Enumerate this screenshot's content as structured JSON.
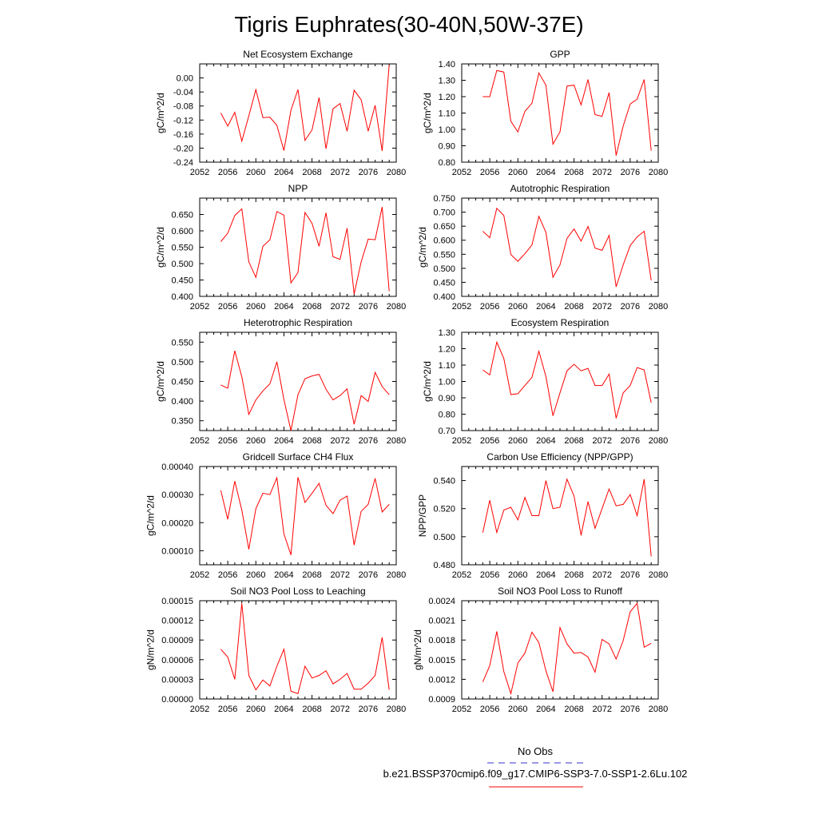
{
  "title": "Tigris Euphrates(30-40N,50W-37E)",
  "legend": {
    "obs_label": "No Obs",
    "obs_color": "#3333cc",
    "model_label": "b.e21.BSSP370cmip6.f09_g17.CMIP6-SSP3-7.0-SSP1-2.6Lu.102",
    "model_color": "#ff0000"
  },
  "chart_data": [
    {
      "type": "line",
      "title": "Net Ecosystem Exchange",
      "ylabel": "gC/m^2/d",
      "xlim": [
        2052,
        2080
      ],
      "ylim": [
        -0.24,
        0.04
      ],
      "xticks": [
        "2052",
        "2056",
        "2060",
        "2064",
        "2068",
        "2072",
        "2076",
        "2080"
      ],
      "yticks": [
        "0.00",
        "-0.04",
        "-0.08",
        "-0.12",
        "-0.16",
        "-0.20",
        "-0.24"
      ],
      "x": [
        2055,
        2056,
        2057,
        2058,
        2059,
        2060,
        2061,
        2062,
        2063,
        2064,
        2065,
        2066,
        2067,
        2068,
        2069,
        2070,
        2071,
        2072,
        2073,
        2074,
        2075,
        2076,
        2077,
        2078,
        2079
      ],
      "values": [
        -0.1,
        -0.137,
        -0.098,
        -0.18,
        -0.108,
        -0.033,
        -0.113,
        -0.112,
        -0.135,
        -0.207,
        -0.092,
        -0.033,
        -0.178,
        -0.148,
        -0.056,
        -0.202,
        -0.088,
        -0.073,
        -0.152,
        -0.035,
        -0.062,
        -0.152,
        -0.078,
        -0.208,
        0.037
      ]
    },
    {
      "type": "line",
      "title": "GPP",
      "ylabel": "gC/m^2/d",
      "xlim": [
        2052,
        2080
      ],
      "ylim": [
        0.8,
        1.4
      ],
      "xticks": [
        "2052",
        "2056",
        "2060",
        "2064",
        "2068",
        "2072",
        "2076",
        "2080"
      ],
      "yticks": [
        "1.40",
        "1.30",
        "1.20",
        "1.10",
        "1.00",
        "0.90",
        "0.80"
      ],
      "x": [
        2055,
        2056,
        2057,
        2058,
        2059,
        2060,
        2061,
        2062,
        2063,
        2064,
        2065,
        2066,
        2067,
        2068,
        2069,
        2070,
        2071,
        2072,
        2073,
        2074,
        2075,
        2076,
        2077,
        2078,
        2079
      ],
      "values": [
        1.2,
        1.2,
        1.36,
        1.35,
        1.05,
        0.985,
        1.11,
        1.16,
        1.345,
        1.27,
        0.91,
        0.985,
        1.265,
        1.27,
        1.15,
        1.305,
        1.09,
        1.08,
        1.225,
        0.84,
        1.02,
        1.155,
        1.185,
        1.305,
        0.87
      ]
    },
    {
      "type": "line",
      "title": "NPP",
      "ylabel": "gC/m^2/d",
      "xlim": [
        2052,
        2080
      ],
      "ylim": [
        0.4,
        0.7
      ],
      "xticks": [
        "2052",
        "2056",
        "2060",
        "2064",
        "2068",
        "2072",
        "2076",
        "2080"
      ],
      "yticks": [
        "0.650",
        "0.600",
        "0.550",
        "0.500",
        "0.450",
        "0.400"
      ],
      "x": [
        2055,
        2056,
        2057,
        2058,
        2059,
        2060,
        2061,
        2062,
        2063,
        2064,
        2065,
        2066,
        2067,
        2068,
        2069,
        2070,
        2071,
        2072,
        2073,
        2074,
        2075,
        2076,
        2077,
        2078,
        2079
      ],
      "values": [
        0.567,
        0.593,
        0.647,
        0.667,
        0.505,
        0.458,
        0.553,
        0.573,
        0.659,
        0.648,
        0.441,
        0.473,
        0.656,
        0.623,
        0.553,
        0.655,
        0.521,
        0.513,
        0.608,
        0.407,
        0.505,
        0.575,
        0.573,
        0.673,
        0.416
      ]
    },
    {
      "type": "line",
      "title": "Autotrophic Respiration",
      "ylabel": "gC/m^2/d",
      "xlim": [
        2052,
        2080
      ],
      "ylim": [
        0.4,
        0.75
      ],
      "xticks": [
        "2052",
        "2056",
        "2060",
        "2064",
        "2068",
        "2072",
        "2076",
        "2080"
      ],
      "yticks": [
        "0.750",
        "0.700",
        "0.650",
        "0.600",
        "0.550",
        "0.500",
        "0.450",
        "0.400"
      ],
      "x": [
        2055,
        2056,
        2057,
        2058,
        2059,
        2060,
        2061,
        2062,
        2063,
        2064,
        2065,
        2066,
        2067,
        2068,
        2069,
        2070,
        2071,
        2072,
        2073,
        2074,
        2075,
        2076,
        2077,
        2078,
        2079
      ],
      "values": [
        0.632,
        0.609,
        0.714,
        0.688,
        0.549,
        0.525,
        0.552,
        0.583,
        0.685,
        0.628,
        0.468,
        0.512,
        0.607,
        0.64,
        0.597,
        0.649,
        0.572,
        0.564,
        0.617,
        0.434,
        0.512,
        0.581,
        0.612,
        0.632,
        0.457
      ]
    },
    {
      "type": "line",
      "title": "Heterotrophic Respiration",
      "ylabel": "gC/m^2/d",
      "xlim": [
        2052,
        2080
      ],
      "ylim": [
        0.325,
        0.575
      ],
      "xticks": [
        "2052",
        "2056",
        "2060",
        "2064",
        "2068",
        "2072",
        "2076",
        "2080"
      ],
      "yticks": [
        "0.550",
        "0.500",
        "0.450",
        "0.400",
        "0.350"
      ],
      "x": [
        2055,
        2056,
        2057,
        2058,
        2059,
        2060,
        2061,
        2062,
        2063,
        2064,
        2065,
        2066,
        2067,
        2068,
        2069,
        2070,
        2071,
        2072,
        2073,
        2074,
        2075,
        2076,
        2077,
        2078,
        2079
      ],
      "values": [
        0.441,
        0.433,
        0.528,
        0.462,
        0.366,
        0.403,
        0.426,
        0.444,
        0.5,
        0.404,
        0.325,
        0.416,
        0.457,
        0.464,
        0.468,
        0.43,
        0.403,
        0.414,
        0.431,
        0.341,
        0.414,
        0.399,
        0.473,
        0.437,
        0.416
      ]
    },
    {
      "type": "line",
      "title": "Ecosystem Respiration",
      "ylabel": "gC/m^2/d",
      "xlim": [
        2052,
        2080
      ],
      "ylim": [
        0.7,
        1.3
      ],
      "xticks": [
        "2052",
        "2056",
        "2060",
        "2064",
        "2068",
        "2072",
        "2076",
        "2080"
      ],
      "yticks": [
        "1.30",
        "1.20",
        "1.10",
        "1.00",
        "0.90",
        "0.80",
        "0.70"
      ],
      "x": [
        2055,
        2056,
        2057,
        2058,
        2059,
        2060,
        2061,
        2062,
        2063,
        2064,
        2065,
        2066,
        2067,
        2068,
        2069,
        2070,
        2071,
        2072,
        2073,
        2074,
        2075,
        2076,
        2077,
        2078,
        2079
      ],
      "values": [
        1.07,
        1.04,
        1.24,
        1.14,
        0.92,
        0.925,
        0.975,
        1.025,
        1.185,
        1.03,
        0.79,
        0.93,
        1.065,
        1.105,
        1.065,
        1.08,
        0.975,
        0.975,
        1.045,
        0.775,
        0.93,
        0.975,
        1.085,
        1.07,
        0.87
      ]
    },
    {
      "type": "line",
      "title": "Gridcell Surface CH4 Flux",
      "ylabel": "gC/m^2/d",
      "xlim": [
        2052,
        2080
      ],
      "ylim": [
        5e-05,
        0.0004
      ],
      "xticks": [
        "2052",
        "2056",
        "2060",
        "2064",
        "2068",
        "2072",
        "2076",
        "2080"
      ],
      "yticks": [
        "0.00040",
        "0.00030",
        "0.00020",
        "0.00010"
      ],
      "x": [
        2055,
        2056,
        2057,
        2058,
        2059,
        2060,
        2061,
        2062,
        2063,
        2064,
        2065,
        2066,
        2067,
        2068,
        2069,
        2070,
        2071,
        2072,
        2073,
        2074,
        2075,
        2076,
        2077,
        2078,
        2079
      ],
      "values": [
        0.000315,
        0.000212,
        0.000348,
        0.000245,
        0.000105,
        0.00025,
        0.000305,
        0.0003,
        0.00036,
        0.00016,
        8.5e-05,
        0.000362,
        0.000272,
        0.000305,
        0.00034,
        0.000262,
        0.000232,
        0.00028,
        0.000295,
        0.00012,
        0.00024,
        0.000265,
        0.000358,
        0.000238,
        0.000265
      ]
    },
    {
      "type": "line",
      "title": "Carbon Use Efficiency (NPP/GPP)",
      "ylabel": "NPP/GPP",
      "xlim": [
        2052,
        2080
      ],
      "ylim": [
        0.48,
        0.55
      ],
      "xticks": [
        "2052",
        "2056",
        "2060",
        "2064",
        "2068",
        "2072",
        "2076",
        "2080"
      ],
      "yticks": [
        "0.540",
        "0.520",
        "0.500",
        "0.480"
      ],
      "x": [
        2055,
        2056,
        2057,
        2058,
        2059,
        2060,
        2061,
        2062,
        2063,
        2064,
        2065,
        2066,
        2067,
        2068,
        2069,
        2070,
        2071,
        2072,
        2073,
        2074,
        2075,
        2076,
        2077,
        2078,
        2079
      ],
      "values": [
        0.503,
        0.526,
        0.503,
        0.519,
        0.521,
        0.512,
        0.528,
        0.515,
        0.515,
        0.54,
        0.52,
        0.521,
        0.541,
        0.529,
        0.501,
        0.525,
        0.506,
        0.52,
        0.534,
        0.522,
        0.523,
        0.53,
        0.515,
        0.541,
        0.486
      ]
    },
    {
      "type": "line",
      "title": "Soil NO3 Pool Loss to Leaching",
      "ylabel": "gN/m^2/d",
      "xlim": [
        2052,
        2080
      ],
      "ylim": [
        0.0,
        0.00015
      ],
      "xticks": [
        "2052",
        "2056",
        "2060",
        "2064",
        "2068",
        "2072",
        "2076",
        "2080"
      ],
      "yticks": [
        "0.00015",
        "0.00012",
        "0.00009",
        "0.00006",
        "0.00003",
        "0.00000"
      ],
      "x": [
        2055,
        2056,
        2057,
        2058,
        2059,
        2060,
        2061,
        2062,
        2063,
        2064,
        2065,
        2066,
        2067,
        2068,
        2069,
        2070,
        2071,
        2072,
        2073,
        2074,
        2075,
        2076,
        2077,
        2078,
        2079
      ],
      "values": [
        7.6e-05,
        6.4e-05,
        3e-05,
        0.000146,
        3.6e-05,
        1.4e-05,
        2.9e-05,
        2e-05,
        5e-05,
        7.6e-05,
        1.2e-05,
        8e-06,
        5e-05,
        3.2e-05,
        3.6e-05,
        4.3e-05,
        2.3e-05,
        3e-05,
        3.9e-05,
        1.5e-05,
        1.5e-05,
        2.4e-05,
        3.6e-05,
        9.4e-05,
        1.4e-05
      ]
    },
    {
      "type": "line",
      "title": "Soil NO3 Pool Loss to Runoff",
      "ylabel": "gN/m^2/d",
      "xlim": [
        2052,
        2080
      ],
      "ylim": [
        0.0009,
        0.0024
      ],
      "xticks": [
        "2052",
        "2056",
        "2060",
        "2064",
        "2068",
        "2072",
        "2076",
        "2080"
      ],
      "yticks": [
        "0.0024",
        "0.0021",
        "0.0018",
        "0.0015",
        "0.0012",
        "0.0009"
      ],
      "x": [
        2055,
        2056,
        2057,
        2058,
        2059,
        2060,
        2061,
        2062,
        2063,
        2064,
        2065,
        2066,
        2067,
        2068,
        2069,
        2070,
        2071,
        2072,
        2073,
        2074,
        2075,
        2076,
        2077,
        2078,
        2079
      ],
      "values": [
        0.00116,
        0.00141,
        0.00193,
        0.00132,
        0.00098,
        0.00145,
        0.0016,
        0.00192,
        0.00176,
        0.00133,
        0.00101,
        0.00199,
        0.00174,
        0.0016,
        0.00161,
        0.00154,
        0.00131,
        0.00181,
        0.00174,
        0.00151,
        0.00179,
        0.00223,
        0.00236,
        0.00169,
        0.00175
      ]
    }
  ]
}
